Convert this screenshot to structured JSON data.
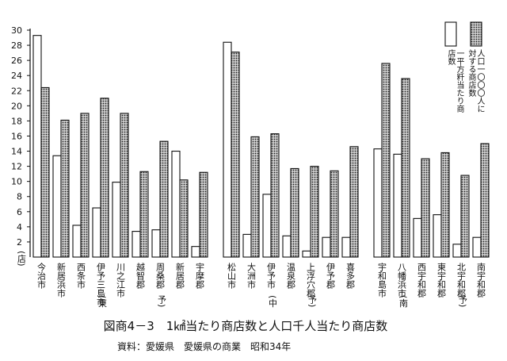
{
  "chart_data": {
    "type": "bar",
    "title": "図商4－3　1㎢当たり商店数と人口千人当たり商店数",
    "source": "資料：愛媛県　愛媛県の商業　昭和34年",
    "y_unit": "(店)",
    "categories": [
      "今治市",
      "新居浜市",
      "西条市",
      "伊予三島市",
      "川之江市",
      "越智郡",
      "周桑郡",
      "新居郡",
      "宇摩郡",
      "松山市",
      "大洲市",
      "伊予市",
      "温泉郡",
      "上浮穴郡",
      "伊予郡",
      "喜多郡",
      "宇和島市",
      "八幡浜市",
      "西宇和郡",
      "東宇和郡",
      "北宇和郡",
      "南宇和郡"
    ],
    "region_marks": [
      null,
      null,
      null,
      "(東",
      null,
      null,
      "予)",
      null,
      null,
      null,
      null,
      "(中",
      null,
      "予)",
      null,
      null,
      null,
      "(南",
      null,
      null,
      "予)",
      null
    ],
    "series": [
      {
        "name": "一平方粁当たり商店数",
        "color": "#ffffff",
        "values": [
          29.3,
          13.4,
          4.2,
          6.5,
          9.9,
          3.4,
          3.6,
          14.0,
          1.4,
          28.4,
          3.0,
          8.3,
          2.8,
          0.8,
          2.6,
          2.6,
          14.3,
          13.6,
          5.1,
          5.6,
          1.7,
          2.6
        ]
      },
      {
        "name": "人口一〇〇〇人に対する商店数",
        "color": "#777777",
        "values": [
          22.4,
          18.1,
          19.0,
          21.0,
          19.0,
          11.3,
          15.3,
          10.2,
          11.2,
          27.1,
          15.9,
          16.3,
          11.7,
          12.0,
          11.4,
          14.6,
          25.6,
          23.6,
          13.0,
          13.8,
          10.8,
          15.0
        ]
      }
    ],
    "ylim": [
      0,
      30
    ],
    "yticks": [
      2,
      4,
      6,
      8,
      10,
      12,
      14,
      16,
      18,
      20,
      22,
      24,
      26,
      28,
      30
    ]
  }
}
